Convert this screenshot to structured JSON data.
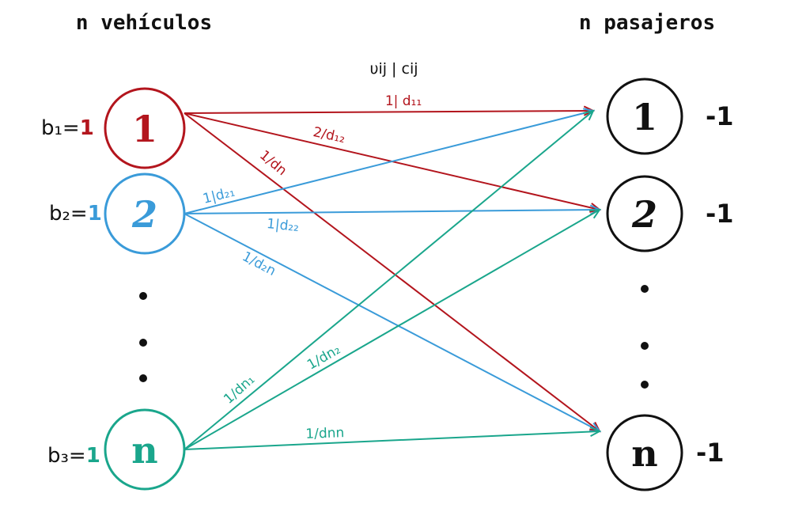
{
  "titles": {
    "left": "n vehículos",
    "right": "n pasajeros"
  },
  "header_label": "υij | cij",
  "colors": {
    "red": "#b3151d",
    "blue": "#3a9bd9",
    "teal": "#1aa68c",
    "black": "#111111"
  },
  "left_nodes": [
    {
      "label": "1",
      "supply_prefix": "b₁=",
      "supply_value": "1"
    },
    {
      "label": "2",
      "supply_prefix": "b₂=",
      "supply_value": "1"
    },
    {
      "label": "n",
      "supply_prefix": "b₃=",
      "supply_value": "1"
    }
  ],
  "right_nodes": [
    {
      "label": "1",
      "demand": "-1"
    },
    {
      "label": "2",
      "demand": "-1"
    },
    {
      "label": "n",
      "demand": "-1"
    }
  ],
  "edges": [
    {
      "from": 0,
      "to": 0,
      "label": "1| d₁₁"
    },
    {
      "from": 0,
      "to": 1,
      "label": "2/d₁₂"
    },
    {
      "from": 0,
      "to": 2,
      "label": "1/dn"
    },
    {
      "from": 1,
      "to": 0,
      "label": "1|d₂₁"
    },
    {
      "from": 1,
      "to": 1,
      "label": "1|d₂₂"
    },
    {
      "from": 1,
      "to": 2,
      "label": "1/d₂n"
    },
    {
      "from": 2,
      "to": 0,
      "label": "1/dn₁"
    },
    {
      "from": 2,
      "to": 1,
      "label": "1/dn₂"
    },
    {
      "from": 2,
      "to": 2,
      "label": "1/dnn"
    }
  ]
}
